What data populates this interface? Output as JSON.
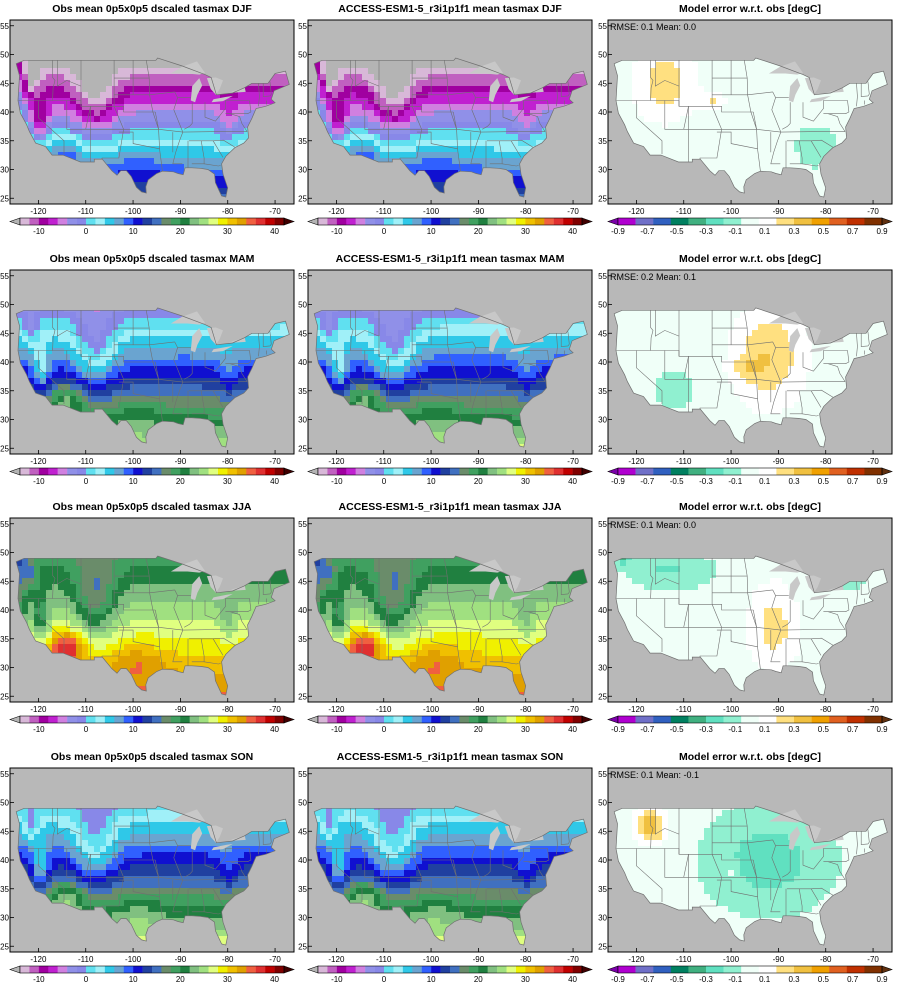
{
  "figure": {
    "rows": [
      {
        "season": "DJF",
        "panels": [
          {
            "type": "obs",
            "title": "Obs mean 0p5x0p5 dscaled tasmax DJF",
            "stats": ""
          },
          {
            "type": "model",
            "title": "ACCESS-ESM1-5_r3i1p1f1 mean tasmax DJF",
            "stats": ""
          },
          {
            "type": "error",
            "title": "Model error w.r.t. obs [degC]",
            "stats": "RMSE: 0.1  Mean: 0.0"
          }
        ]
      },
      {
        "season": "MAM",
        "panels": [
          {
            "type": "obs",
            "title": "Obs mean 0p5x0p5 dscaled tasmax MAM",
            "stats": ""
          },
          {
            "type": "model",
            "title": "ACCESS-ESM1-5_r3i1p1f1 mean tasmax MAM",
            "stats": ""
          },
          {
            "type": "error",
            "title": "Model error w.r.t. obs [degC]",
            "stats": "RMSE: 0.2  Mean: 0.1"
          }
        ]
      },
      {
        "season": "JJA",
        "panels": [
          {
            "type": "obs",
            "title": "Obs mean 0p5x0p5 dscaled tasmax JJA",
            "stats": ""
          },
          {
            "type": "model",
            "title": "ACCESS-ESM1-5_r3i1p1f1 mean tasmax JJA",
            "stats": ""
          },
          {
            "type": "error",
            "title": "Model error w.r.t. obs [degC]",
            "stats": "RMSE: 0.1  Mean: 0.0"
          }
        ]
      },
      {
        "season": "SON",
        "panels": [
          {
            "type": "obs",
            "title": "Obs mean 0p5x0p5 dscaled tasmax SON",
            "stats": ""
          },
          {
            "type": "model",
            "title": "ACCESS-ESM1-5_r3i1p1f1 mean tasmax SON",
            "stats": ""
          },
          {
            "type": "error",
            "title": "Model error w.r.t. obs [degC]",
            "stats": "RMSE: 0.1  Mean: -0.1"
          }
        ]
      }
    ],
    "map_axes": {
      "lon_range": [
        -126,
        -66
      ],
      "lat_range": [
        24,
        56
      ],
      "lon_ticks": [
        "-120",
        "-110",
        "-100",
        "-90",
        "-80",
        "-70"
      ],
      "lat_ticks": [
        "25",
        "30",
        "35",
        "40",
        "45",
        "50",
        "55"
      ]
    },
    "temperature_colorbar": {
      "labels": [
        "-10",
        "0",
        "10",
        "20",
        "30",
        "40"
      ],
      "colors": [
        "#b4b4b4",
        "#d8b8d8",
        "#c060c0",
        "#a000a0",
        "#c020d0",
        "#d080e0",
        "#9090e8",
        "#8888e8",
        "#60e0f0",
        "#a0f0f8",
        "#2fc8e8",
        "#6aa4d0",
        "#3060ff",
        "#1010d0",
        "#2040a0",
        "#4070c0",
        "#6a8c6a",
        "#40a060",
        "#208040",
        "#80c080",
        "#a0e080",
        "#e0ff80",
        "#f0f000",
        "#f0c000",
        "#e0a000",
        "#f06040",
        "#e03030",
        "#c00000",
        "#800000",
        "#400000"
      ]
    },
    "error_colorbar": {
      "labels": [
        "-0.9",
        "-0.7",
        "-0.5",
        "-0.3",
        "-0.1",
        "0.1",
        "0.3",
        "0.5",
        "0.7",
        "0.9"
      ],
      "colors": [
        "#7a00a8",
        "#b000d0",
        "#7070c8",
        "#3060c0",
        "#008060",
        "#40b080",
        "#60e0c0",
        "#90f0d0",
        "#f0fff8",
        "#ffffff",
        "#ffe080",
        "#f0c040",
        "#f0a000",
        "#e06020",
        "#c03000",
        "#803000",
        "#603010"
      ]
    },
    "colors": {
      "ocean": "#b8b8b8",
      "land_missing": "#c8c8c8",
      "border": "#707070",
      "frame": "#000000"
    }
  }
}
